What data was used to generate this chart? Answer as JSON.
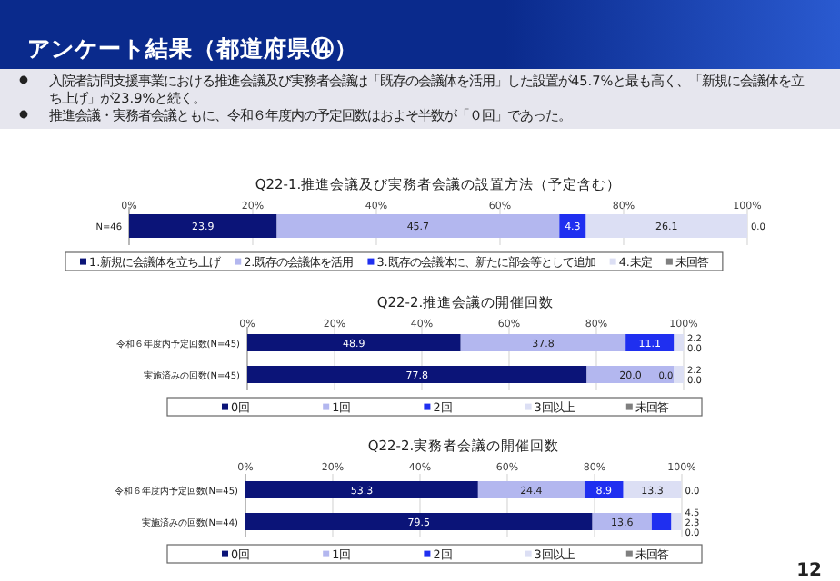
{
  "chart_data": [
    {
      "type": "other",
      "title": "アンケート結果（都道府県⑭）",
      "annotations": [
        "入院者訪問支援事業における推進会議及び実務者会議は「既存の会議体を活用」した設置が45.7%と最も高く、「新規に会議体を立ち上げ」が23.9%と続く。",
        "推進会議・実務者会議ともに、令和６年度内の予定回数はおよそ半数が「０回」であった。",
        "12"
      ]
    },
    {
      "type": "bar",
      "orientation": "horizontal",
      "stacked": true,
      "title": "Q22-1.推進会議及び実務者会議の設置方法（予定含む）",
      "categories": [
        "N=46"
      ],
      "series": [
        {
          "name": "1.新規に会議体を立ち上げ",
          "color": "#0b1478",
          "values": [
            23.9
          ],
          "value_labels": [
            "23.9"
          ]
        },
        {
          "name": "2.既存の会議体を活用",
          "color": "#b3b7ef",
          "values": [
            45.7
          ],
          "value_labels": [
            "45.7"
          ]
        },
        {
          "name": "3.既存の会議体に、新たに部会等として追加",
          "color": "#1f2ff0",
          "values": [
            4.3
          ],
          "value_labels": [
            "4.3"
          ]
        },
        {
          "name": "4.未定",
          "color": "#dcdff4",
          "values": [
            26.1
          ],
          "value_labels": [
            "26.1"
          ]
        },
        {
          "name": "未回答",
          "color": "#7f7f7f",
          "values": [
            0
          ],
          "value_labels": [
            "0.0"
          ]
        }
      ],
      "xlim": [
        0,
        100
      ],
      "xticks": [
        {
          "value": 0,
          "label": "0%"
        },
        {
          "value": 20,
          "label": "20%"
        },
        {
          "value": 40,
          "label": "40%"
        },
        {
          "value": 60,
          "label": "60%"
        },
        {
          "value": 80,
          "label": "80%"
        },
        {
          "value": 100,
          "label": "100%"
        }
      ],
      "grid": "x",
      "legend": "bottom"
    },
    {
      "type": "bar",
      "orientation": "horizontal",
      "stacked": true,
      "title": "Q22-2.推進会議の開催回数",
      "categories": [
        "令和６年度内予定回数(N=45)",
        "実施済みの回数(N=45)"
      ],
      "series": [
        {
          "name": "0回",
          "color": "#0b1478",
          "values": [
            48.9,
            77.8
          ],
          "value_labels": [
            "48.9",
            "77.8"
          ]
        },
        {
          "name": "1回",
          "color": "#b3b7ef",
          "values": [
            37.8,
            20
          ],
          "value_labels": [
            "37.8",
            "20.0"
          ]
        },
        {
          "name": "2回",
          "color": "#1f2ff0",
          "values": [
            11.1,
            0
          ],
          "value_labels": [
            "11.1",
            "0.0"
          ]
        },
        {
          "name": "3回以上",
          "color": "#dcdff4",
          "values": [
            2.2,
            2.2
          ],
          "value_labels": [
            "2.2",
            "2.2"
          ]
        },
        {
          "name": "未回答",
          "color": "#7f7f7f",
          "values": [
            0,
            0
          ],
          "value_labels": [
            "0.0",
            "0.0"
          ]
        }
      ],
      "xlim": [
        0,
        100
      ],
      "xticks": [
        {
          "value": 0,
          "label": "0%"
        },
        {
          "value": 20,
          "label": "20%"
        },
        {
          "value": 40,
          "label": "40%"
        },
        {
          "value": 60,
          "label": "60%"
        },
        {
          "value": 80,
          "label": "80%"
        },
        {
          "value": 100,
          "label": "100%"
        }
      ],
      "grid": "x",
      "legend": "bottom"
    },
    {
      "type": "bar",
      "orientation": "horizontal",
      "stacked": true,
      "title": "Q22-2.実務者会議の開催回数",
      "categories": [
        "令和６年度内予定回数(N=45)",
        "実施済みの回数(N=44)"
      ],
      "series": [
        {
          "name": "0回",
          "color": "#0b1478",
          "values": [
            53.3,
            79.5
          ],
          "value_labels": [
            "53.3",
            "79.5"
          ]
        },
        {
          "name": "1回",
          "color": "#b3b7ef",
          "values": [
            24.4,
            13.6
          ],
          "value_labels": [
            "24.4",
            "13.6"
          ]
        },
        {
          "name": "2回",
          "color": "#1f2ff0",
          "values": [
            8.9,
            4.5
          ],
          "value_labels": [
            "8.9",
            "4.5"
          ]
        },
        {
          "name": "3回以上",
          "color": "#dcdff4",
          "values": [
            13.3,
            2.3
          ],
          "value_labels": [
            "13.3",
            "2.3"
          ]
        },
        {
          "name": "未回答",
          "color": "#7f7f7f",
          "values": [
            0,
            0
          ],
          "value_labels": [
            "0.0",
            "0.0"
          ]
        }
      ],
      "xlim": [
        0,
        100
      ],
      "xticks": [
        {
          "value": 0,
          "label": "0%"
        },
        {
          "value": 20,
          "label": "20%"
        },
        {
          "value": 40,
          "label": "40%"
        },
        {
          "value": 60,
          "label": "60%"
        },
        {
          "value": 80,
          "label": "80%"
        },
        {
          "value": 100,
          "label": "100%"
        }
      ],
      "grid": "x",
      "legend": "bottom"
    }
  ]
}
